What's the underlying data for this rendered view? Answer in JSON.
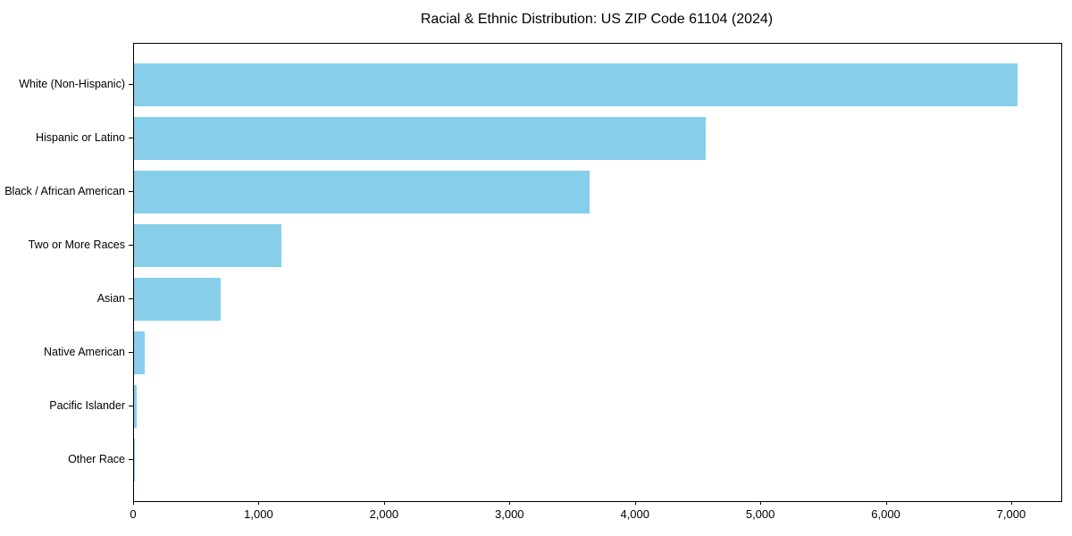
{
  "chart_data": {
    "type": "bar",
    "orientation": "horizontal",
    "title": "Racial & Ethnic Distribution: US ZIP Code 61104 (2024)",
    "categories": [
      "White (Non-Hispanic)",
      "Hispanic or Latino",
      "Black / African American",
      "Two or More Races",
      "Asian",
      "Native American",
      "Pacific Islander",
      "Other Race"
    ],
    "values": [
      7040,
      4560,
      3630,
      1175,
      690,
      85,
      20,
      5
    ],
    "xlabel": "",
    "ylabel": "",
    "xlim": [
      0,
      7392
    ],
    "x_ticks": [
      0,
      1000,
      2000,
      3000,
      4000,
      5000,
      6000,
      7000
    ],
    "x_tick_labels": [
      "0",
      "1,000",
      "2,000",
      "3,000",
      "4,000",
      "5,000",
      "6,000",
      "7,000"
    ],
    "bar_color": "#87CEEB",
    "grid": false,
    "legend": null,
    "background_color": "#ffffff",
    "text_color": "#000000",
    "spine_color": "#000000"
  }
}
